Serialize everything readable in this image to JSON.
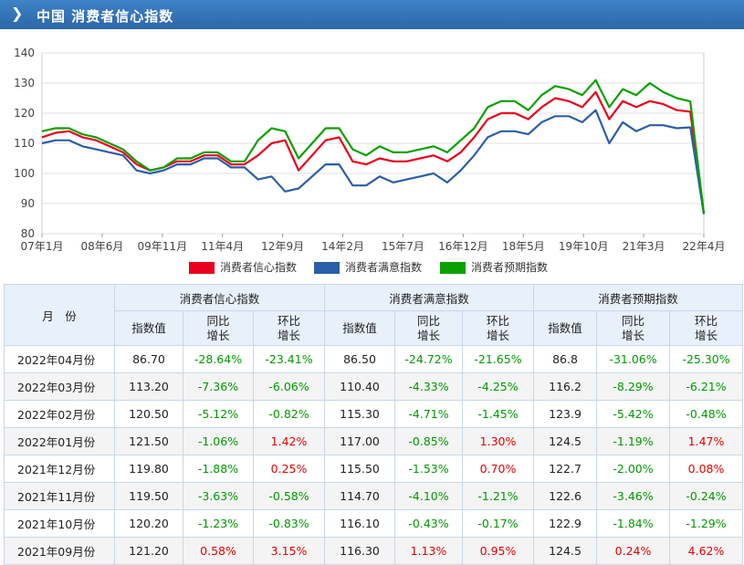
{
  "header": {
    "title": "中国 消费者信心指数"
  },
  "legend": [
    {
      "label": "消费者信心指数",
      "color": "#e8001c"
    },
    {
      "label": "消费者满意指数",
      "color": "#2b5ea8"
    },
    {
      "label": "消费者预期指数",
      "color": "#0aa000"
    }
  ],
  "chart_data": {
    "type": "line",
    "x_ticks": [
      "07年1月",
      "08年6月",
      "09年11月",
      "11年4月",
      "12年9月",
      "14年2月",
      "15年7月",
      "16年12月",
      "18年5月",
      "19年10月",
      "21年3月",
      "22年4月"
    ],
    "y_ticks": [
      80,
      90,
      100,
      110,
      120,
      130,
      140
    ],
    "ylim": [
      80,
      140
    ],
    "grid": true,
    "legend_position": "bottom",
    "x_range": [
      "2007-01",
      "2022-04"
    ],
    "series": [
      {
        "name": "消费者信心指数",
        "color": "#e8001c",
        "values": [
          112,
          113.5,
          114,
          112,
          111,
          109,
          107,
          103,
          101,
          102,
          104,
          104,
          106,
          106,
          103,
          103,
          106,
          110,
          111,
          101,
          106,
          111,
          112,
          104,
          103,
          105,
          104,
          104,
          105,
          106,
          104,
          107,
          112,
          118,
          120,
          120,
          118,
          122,
          125,
          124,
          122,
          127,
          118,
          124,
          122,
          124,
          123,
          121,
          120.5,
          86.7
        ]
      },
      {
        "name": "消费者满意指数",
        "color": "#2b5ea8",
        "values": [
          110,
          111,
          111,
          109,
          108,
          107,
          106,
          101,
          100,
          101,
          103,
          103,
          105,
          105,
          102,
          102,
          98,
          99,
          94,
          95,
          99,
          103,
          103,
          96,
          96,
          99,
          97,
          98,
          99,
          100,
          97,
          101,
          106,
          112,
          114,
          114,
          113,
          117,
          119,
          119,
          117,
          121,
          110,
          117,
          114,
          116,
          116,
          115,
          115.3,
          86.5
        ]
      },
      {
        "name": "消费者预期指数",
        "color": "#0aa000",
        "values": [
          114,
          115,
          115,
          113,
          112,
          110,
          108,
          104,
          101,
          102,
          105,
          105,
          107,
          107,
          104,
          104,
          111,
          115,
          114,
          105,
          110,
          115,
          115,
          108,
          106,
          109,
          107,
          107,
          108,
          109,
          107,
          111,
          115,
          122,
          124,
          124,
          121,
          126,
          129,
          128,
          126,
          131,
          122,
          128,
          126,
          130,
          127,
          125,
          123.9,
          86.8
        ]
      }
    ]
  },
  "table": {
    "headers": {
      "month": "月　份",
      "groups": [
        "消费者信心指数",
        "消费者满意指数",
        "消费者预期指数"
      ],
      "sub": [
        "指数值",
        "同比\n增长",
        "环比\n增长"
      ]
    },
    "rows": [
      {
        "month": "2022年04月份",
        "c": [
          "86.70",
          "-28.64%",
          "-23.41%"
        ],
        "s": [
          "86.50",
          "-24.72%",
          "-21.65%"
        ],
        "e": [
          "86.8",
          "-31.06%",
          "-25.30%"
        ]
      },
      {
        "month": "2022年03月份",
        "c": [
          "113.20",
          "-7.36%",
          "-6.06%"
        ],
        "s": [
          "110.40",
          "-4.33%",
          "-4.25%"
        ],
        "e": [
          "116.2",
          "-8.29%",
          "-6.21%"
        ]
      },
      {
        "month": "2022年02月份",
        "c": [
          "120.50",
          "-5.12%",
          "-0.82%"
        ],
        "s": [
          "115.30",
          "-4.71%",
          "-1.45%"
        ],
        "e": [
          "123.9",
          "-5.42%",
          "-0.48%"
        ]
      },
      {
        "month": "2022年01月份",
        "c": [
          "121.50",
          "-1.06%",
          "1.42%"
        ],
        "s": [
          "117.00",
          "-0.85%",
          "1.30%"
        ],
        "e": [
          "124.5",
          "-1.19%",
          "1.47%"
        ]
      },
      {
        "month": "2021年12月份",
        "c": [
          "119.80",
          "-1.88%",
          "0.25%"
        ],
        "s": [
          "115.50",
          "-1.53%",
          "0.70%"
        ],
        "e": [
          "122.7",
          "-2.00%",
          "0.08%"
        ]
      },
      {
        "month": "2021年11月份",
        "c": [
          "119.50",
          "-3.63%",
          "-0.58%"
        ],
        "s": [
          "114.70",
          "-4.10%",
          "-1.21%"
        ],
        "e": [
          "122.6",
          "-3.46%",
          "-0.24%"
        ]
      },
      {
        "month": "2021年10月份",
        "c": [
          "120.20",
          "-1.23%",
          "-0.83%"
        ],
        "s": [
          "116.10",
          "-0.43%",
          "-0.17%"
        ],
        "e": [
          "122.9",
          "-1.84%",
          "-1.29%"
        ]
      },
      {
        "month": "2021年09月份",
        "c": [
          "121.20",
          "0.58%",
          "3.15%"
        ],
        "s": [
          "116.30",
          "1.13%",
          "0.95%"
        ],
        "e": [
          "124.5",
          "0.24%",
          "4.62%"
        ]
      }
    ]
  }
}
